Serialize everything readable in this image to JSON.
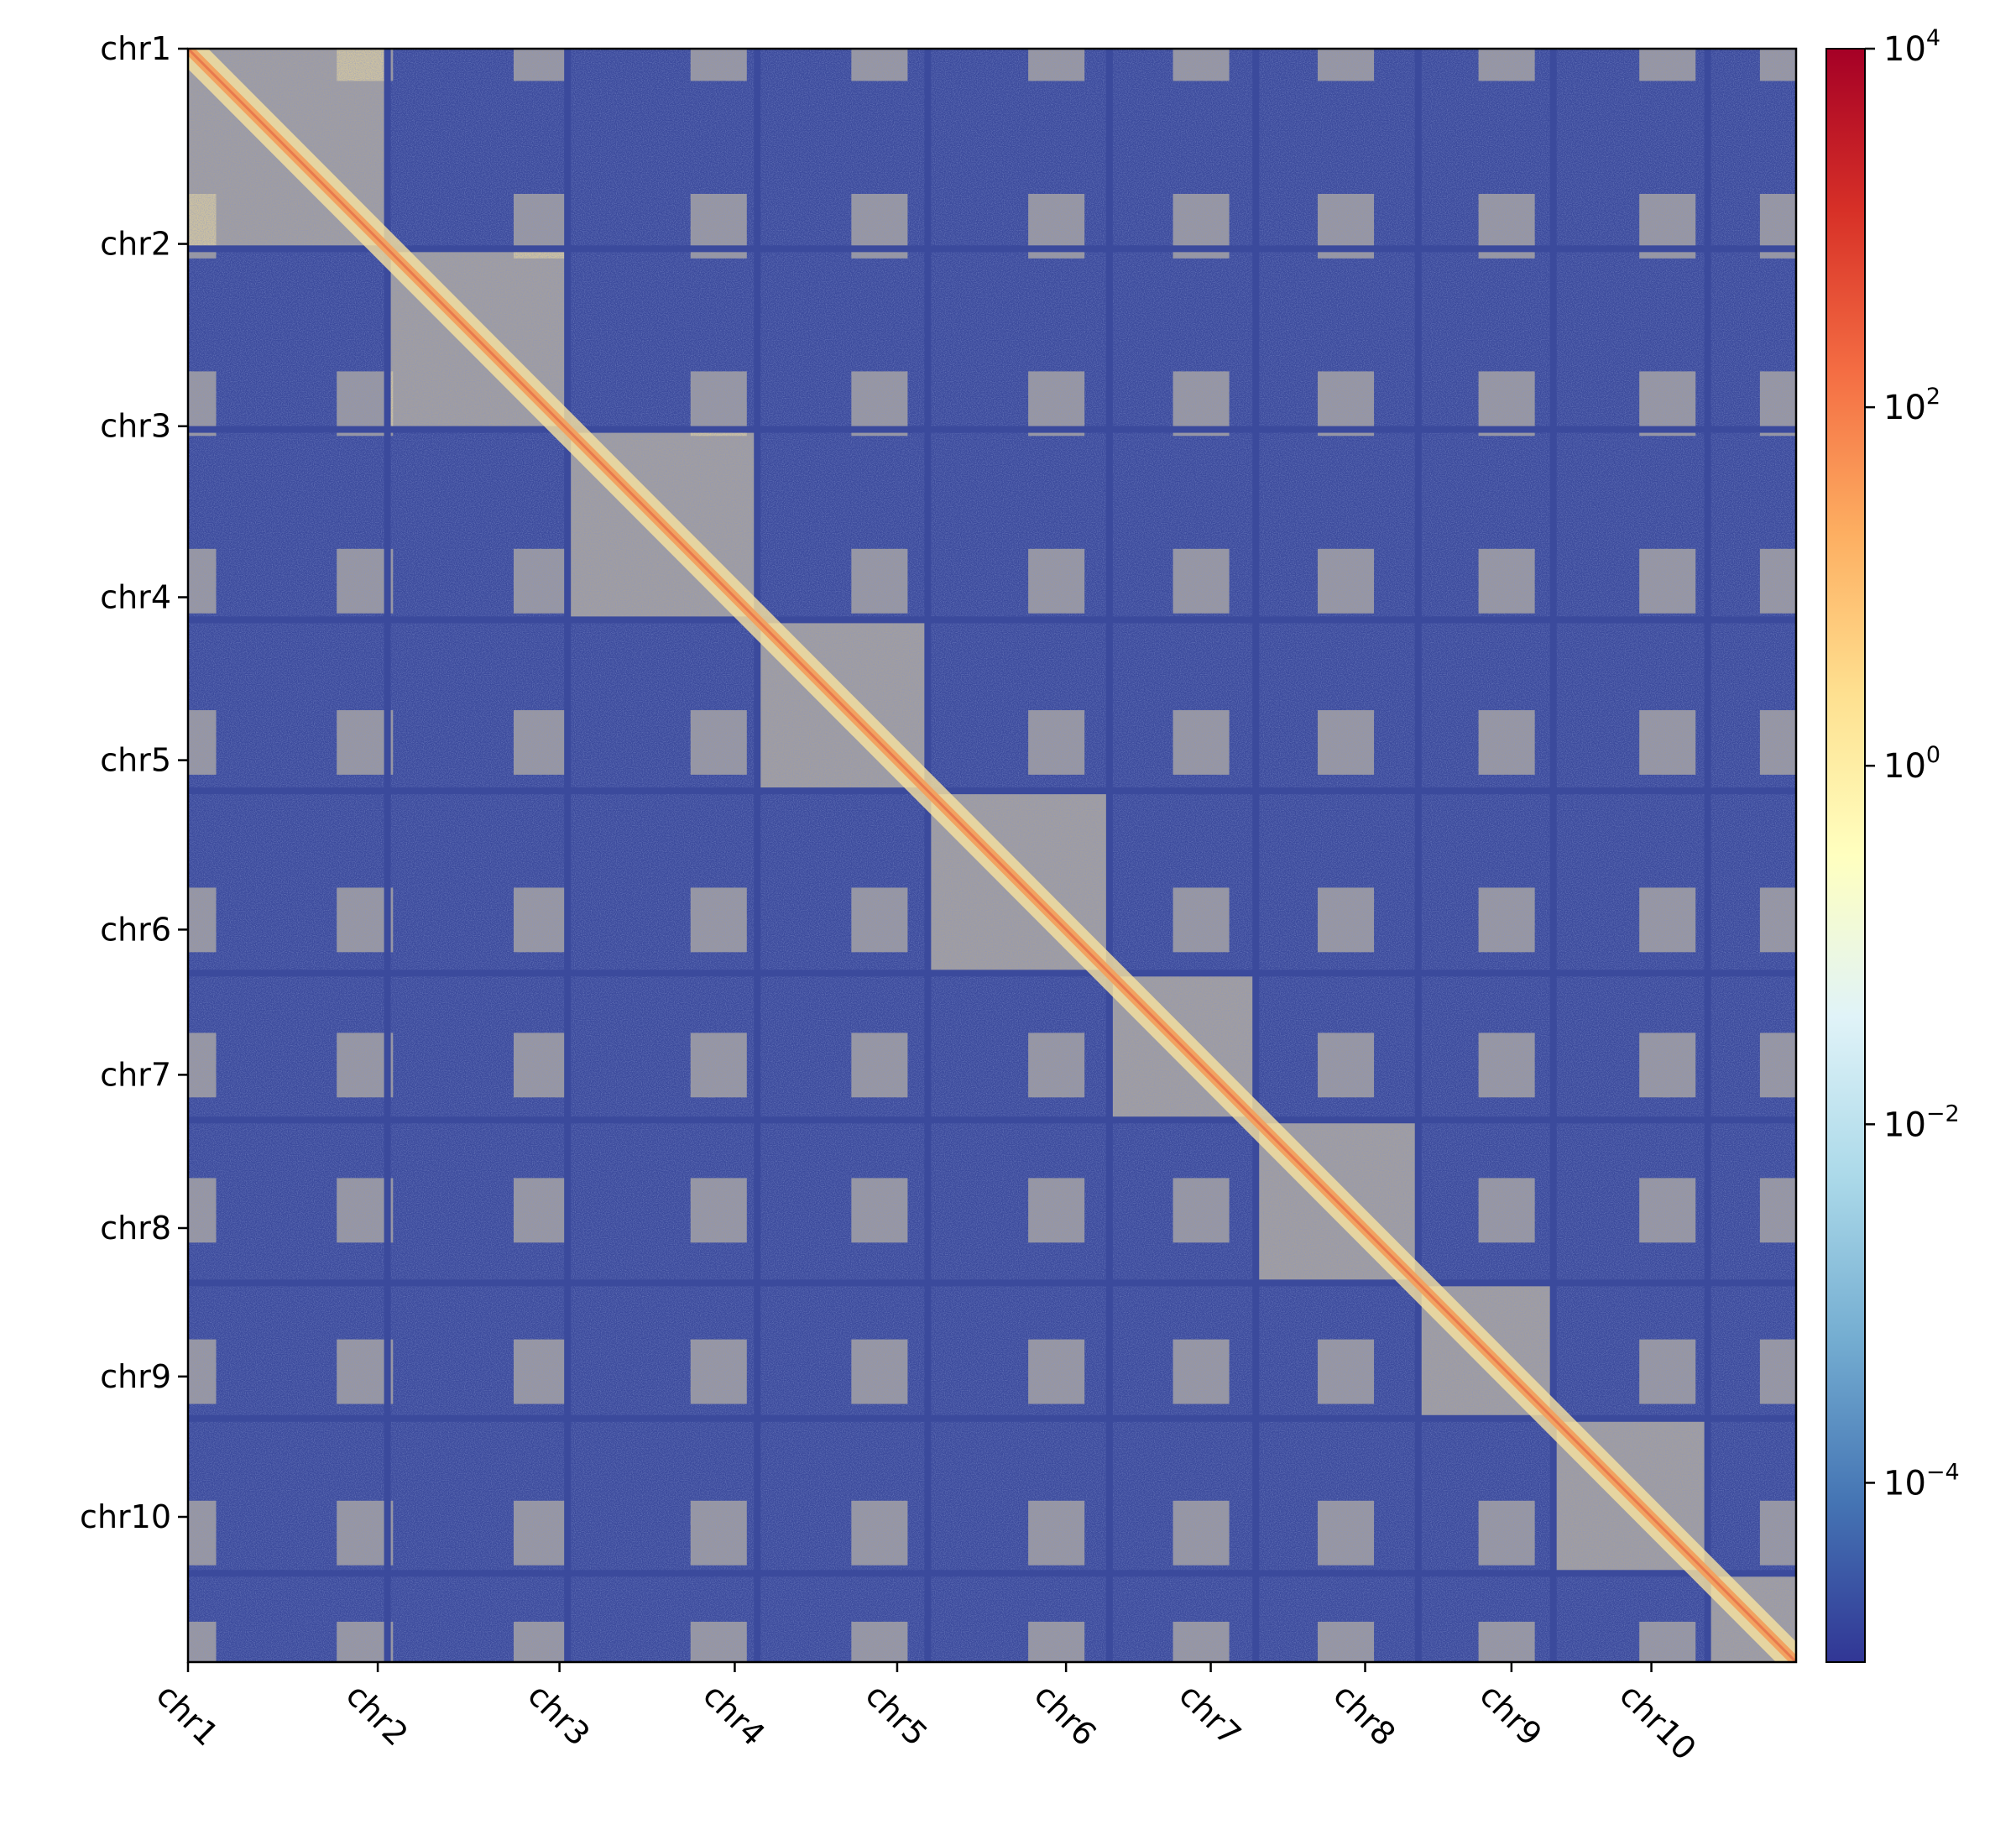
{
  "chart_data": {
    "type": "heatmap",
    "title": "",
    "xlabel": "",
    "ylabel": "",
    "chromosomes": [
      "chr1",
      "chr2",
      "chr3",
      "chr4",
      "chr5",
      "chr6",
      "chr7",
      "chr8",
      "chr9",
      "chr10"
    ],
    "boundaries": [
      0,
      0.124,
      0.236,
      0.354,
      0.46,
      0.573,
      0.664,
      0.765,
      0.849,
      0.945,
      1.0
    ],
    "x_tick_positions": [
      0.0,
      0.118,
      0.231,
      0.34,
      0.441,
      0.546,
      0.636,
      0.732,
      0.823,
      0.91
    ],
    "y_tick_positions": [
      0.0,
      0.121,
      0.234,
      0.34,
      0.441,
      0.546,
      0.636,
      0.731,
      0.823,
      0.91
    ],
    "x_tick_labels": [
      "chr1",
      "chr2",
      "chr3",
      "chr4",
      "chr5",
      "chr6",
      "chr7",
      "chr8",
      "chr9",
      "chr10"
    ],
    "y_tick_labels": [
      "chr1",
      "chr2",
      "chr3",
      "chr4",
      "chr5",
      "chr6",
      "chr7",
      "chr8",
      "chr9",
      "chr10"
    ],
    "color_scale": {
      "type": "log",
      "colormap": "RdYlBu_r",
      "min": 1e-05,
      "max": 10000,
      "ticks": [
        {
          "base": "10",
          "exp": "4",
          "value": 10000
        },
        {
          "base": "10",
          "exp": "2",
          "value": 100
        },
        {
          "base": "10",
          "exp": "0",
          "value": 1
        },
        {
          "base": "10",
          "exp": "−2",
          "value": 0.01
        },
        {
          "base": "10",
          "exp": "−4",
          "value": 0.0001
        }
      ]
    },
    "colors": {
      "background": "#3b4a9c",
      "enriched": "#f8e3a0",
      "diagonal": "#f2a260",
      "diagonal_core": "#e8794e"
    }
  }
}
